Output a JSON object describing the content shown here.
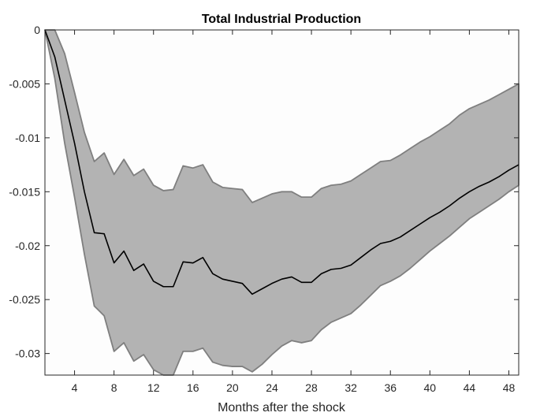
{
  "chart_data": {
    "type": "area",
    "title": "Total Industrial Production",
    "xlabel": "Months after the shock",
    "ylabel": "",
    "xlim": [
      1,
      49
    ],
    "ylim": [
      -0.032,
      0
    ],
    "x_ticks": [
      4,
      8,
      12,
      16,
      20,
      24,
      28,
      32,
      36,
      40,
      44,
      48
    ],
    "x_tick_labels": [
      "4",
      "8",
      "12",
      "16",
      "20",
      "24",
      "28",
      "32",
      "36",
      "40",
      "44",
      "48"
    ],
    "y_ticks": [
      0,
      -0.005,
      -0.01,
      -0.015,
      -0.02,
      -0.025,
      -0.03
    ],
    "y_tick_labels": [
      "0",
      "-0.005",
      "-0.01",
      "-0.015",
      "-0.02",
      "-0.025",
      "-0.03"
    ],
    "grid": false,
    "colors": {
      "band": "#b3b3b3",
      "band_edge": "#7f7f7f",
      "line": "#000000",
      "axes": "#262626"
    },
    "x": [
      1,
      2,
      3,
      4,
      5,
      6,
      7,
      8,
      9,
      10,
      11,
      12,
      13,
      14,
      15,
      16,
      17,
      18,
      19,
      20,
      21,
      22,
      23,
      24,
      25,
      26,
      27,
      28,
      29,
      30,
      31,
      32,
      33,
      34,
      35,
      36,
      37,
      38,
      39,
      40,
      41,
      42,
      43,
      44,
      45,
      46,
      47,
      48,
      49
    ],
    "series": [
      {
        "values": [
          0,
          -0.0025,
          -0.0065,
          -0.0105,
          -0.015,
          -0.0188,
          -0.0189,
          -0.0216,
          -0.0205,
          -0.0223,
          -0.0217,
          -0.0233,
          -0.0238,
          -0.0238,
          -0.0215,
          -0.0216,
          -0.0211,
          -0.0226,
          -0.0231,
          -0.0233,
          -0.0235,
          -0.0245,
          -0.024,
          -0.0235,
          -0.0231,
          -0.0229,
          -0.0234,
          -0.0234,
          -0.0226,
          -0.0222,
          -0.0221,
          -0.0218,
          -0.0211,
          -0.0204,
          -0.0198,
          -0.0196,
          -0.0192,
          -0.0186,
          -0.018,
          -0.0174,
          -0.0169,
          -0.0163,
          -0.0156,
          -0.015,
          -0.0145,
          -0.0141,
          -0.0136,
          -0.013,
          -0.0125
        ]
      }
    ],
    "band": {
      "upper": [
        0,
        0,
        -0.0022,
        -0.0058,
        -0.0095,
        -0.0122,
        -0.0114,
        -0.0134,
        -0.012,
        -0.0135,
        -0.0129,
        -0.0144,
        -0.0149,
        -0.0148,
        -0.0126,
        -0.0128,
        -0.0125,
        -0.0141,
        -0.0146,
        -0.0147,
        -0.0148,
        -0.016,
        -0.0156,
        -0.0152,
        -0.015,
        -0.015,
        -0.0155,
        -0.0155,
        -0.0147,
        -0.0144,
        -0.0143,
        -0.014,
        -0.0134,
        -0.0128,
        -0.0122,
        -0.0121,
        -0.0116,
        -0.011,
        -0.0104,
        -0.0099,
        -0.0093,
        -0.0087,
        -0.0079,
        -0.0073,
        -0.0069,
        -0.0065,
        -0.006,
        -0.0055,
        -0.005
      ],
      "lower": [
        0,
        -0.0045,
        -0.0105,
        -0.0155,
        -0.0208,
        -0.0256,
        -0.0265,
        -0.0298,
        -0.029,
        -0.0307,
        -0.0301,
        -0.0315,
        -0.032,
        -0.032,
        -0.0298,
        -0.0298,
        -0.0295,
        -0.0308,
        -0.0311,
        -0.0312,
        -0.0312,
        -0.0317,
        -0.031,
        -0.0301,
        -0.0293,
        -0.0288,
        -0.029,
        -0.0288,
        -0.0278,
        -0.0271,
        -0.0267,
        -0.0263,
        -0.0255,
        -0.0246,
        -0.0237,
        -0.0233,
        -0.0228,
        -0.0221,
        -0.0213,
        -0.0205,
        -0.0198,
        -0.0191,
        -0.0183,
        -0.0175,
        -0.0169,
        -0.0163,
        -0.0157,
        -0.015,
        -0.0144
      ]
    }
  }
}
